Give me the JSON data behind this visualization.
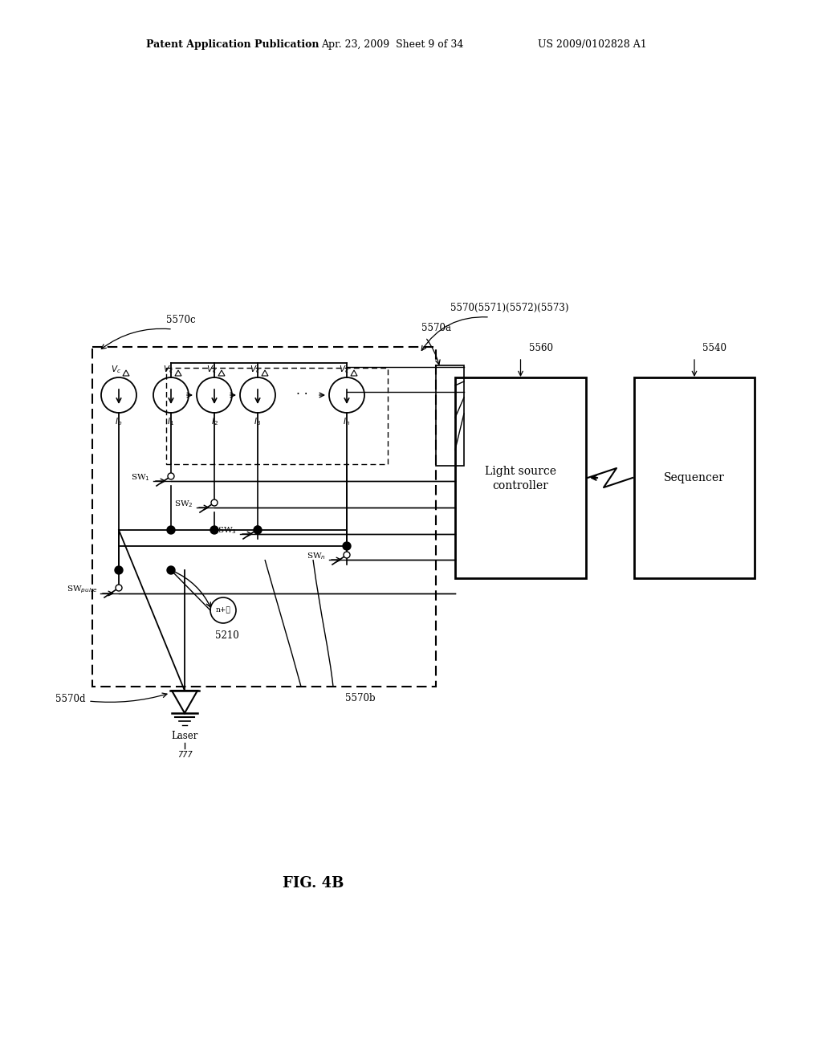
{
  "title": "FIG. 4B",
  "header_left": "Patent Application Publication",
  "header_mid": "Apr. 23, 2009  Sheet 9 of 34",
  "header_right": "US 2009/0102828 A1",
  "bg_color": "#ffffff",
  "label_5570c": "5570c",
  "label_5570a": "5570a",
  "label_5570b": "5570b",
  "label_5570d": "5570d",
  "label_5570_group": "5570(5571)(5572)(5573)",
  "label_5560": "5560",
  "label_5540": "5540",
  "label_5210": "5210",
  "label_lsc_line1": "Light source",
  "label_lsc_line2": "controller",
  "label_seq": "Sequencer",
  "label_laser": "Laser"
}
